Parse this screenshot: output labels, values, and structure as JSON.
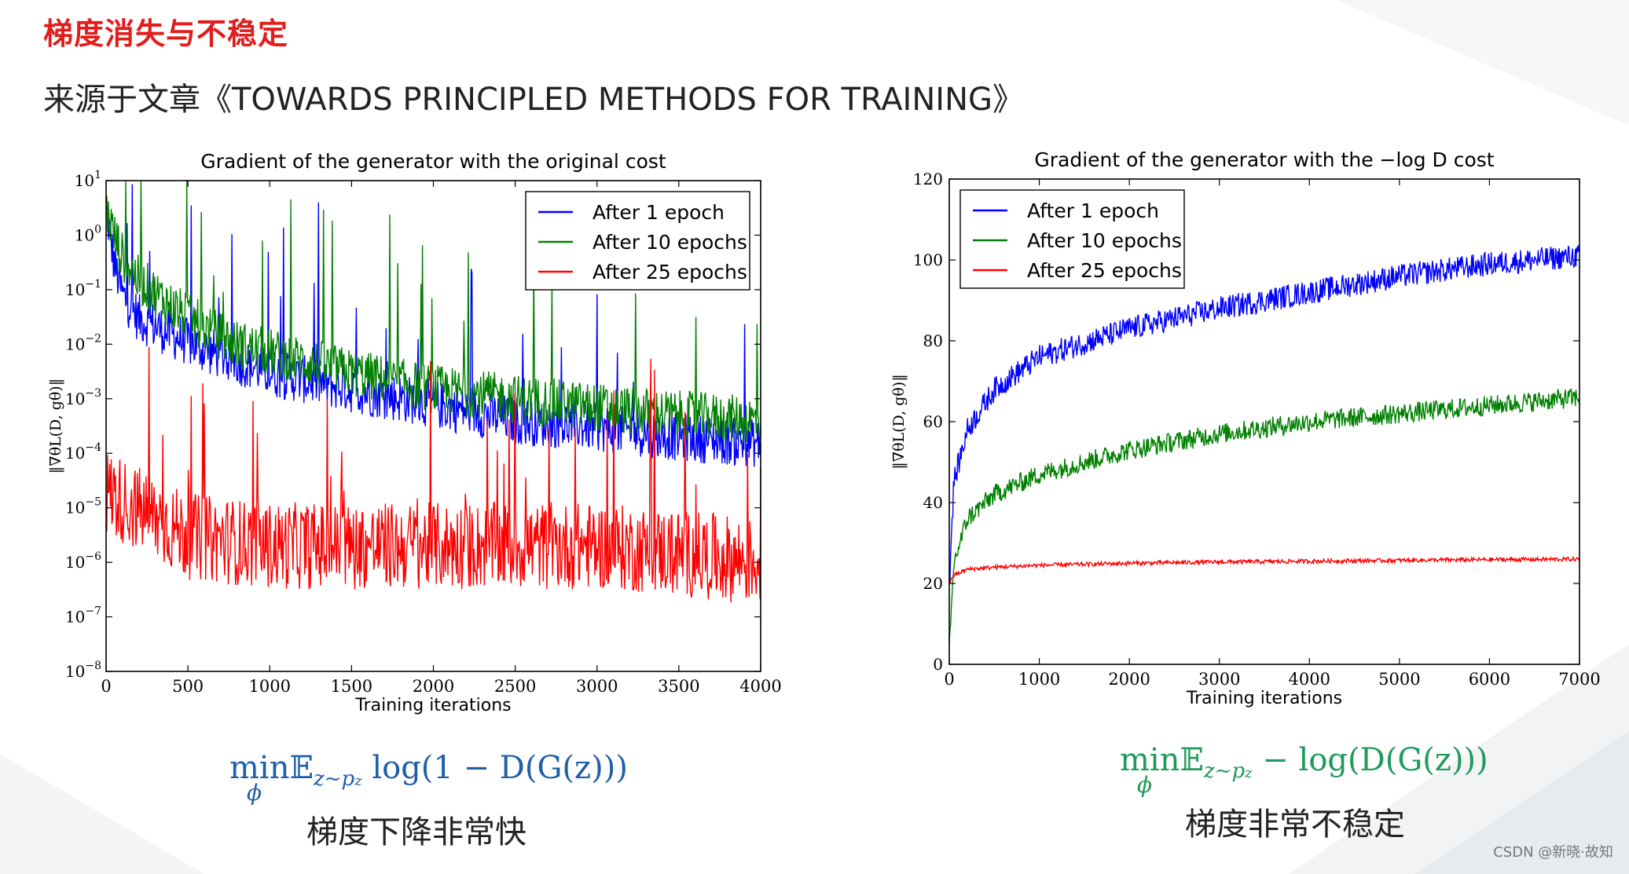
{
  "page": {
    "title": "梯度消失与不稳定",
    "subtitle": "来源于文章《TOWARDS PRINCIPLED METHODS FOR TRAINING》",
    "watermark": "CSDN @新晓·故知",
    "accent_color": "#e31c1c"
  },
  "chart_data": [
    {
      "type": "line",
      "title": "Gradient of the generator with the original cost",
      "xlabel": "Training iterations",
      "ylabel": "‖∇θL(D, gθ)‖",
      "xlim": [
        0,
        4000
      ],
      "ylim": [
        1e-08,
        10
      ],
      "yscale": "log",
      "x_ticks": [
        "0",
        "500",
        "1000",
        "1500",
        "2000",
        "2500",
        "3000",
        "3500",
        "4000"
      ],
      "y_tick_exponents": [
        "1",
        "0",
        "-1",
        "-2",
        "-3",
        "-4",
        "-5",
        "-6",
        "-7",
        "-8"
      ],
      "legend": "top-right",
      "grid": false,
      "series": [
        {
          "name": "After 1 epoch",
          "color": "#0000ff",
          "x": [
            0,
            50,
            100,
            200,
            400,
            600,
            800,
            1000,
            1500,
            2000,
            2500,
            3000,
            3500,
            4000
          ],
          "values": [
            3,
            0.3,
            0.08,
            0.03,
            0.015,
            0.008,
            0.005,
            0.003,
            0.0015,
            0.0008,
            0.0004,
            0.0003,
            0.0002,
            0.00015
          ]
        },
        {
          "name": "After 10 epochs",
          "color": "#008000",
          "x": [
            0,
            50,
            100,
            200,
            400,
            600,
            800,
            1000,
            1500,
            2000,
            2500,
            3000,
            3500,
            4000
          ],
          "values": [
            3,
            1,
            0.4,
            0.15,
            0.05,
            0.02,
            0.01,
            0.007,
            0.003,
            0.0015,
            0.001,
            0.0007,
            0.0005,
            0.0004
          ]
        },
        {
          "name": "After 25 epochs",
          "color": "#ff0000",
          "x": [
            0,
            500,
            1000,
            1500,
            2000,
            2500,
            3000,
            3500,
            4000
          ],
          "values": [
            2e-05,
            3e-06,
            2e-06,
            2e-06,
            2e-06,
            2e-06,
            2e-06,
            1.5e-06,
            1e-06
          ]
        }
      ]
    },
    {
      "type": "line",
      "title": "Gradient of the generator with the −log D cost",
      "xlabel": "Training iterations",
      "ylabel": "‖∇θL(D, gθ)‖",
      "xlim": [
        0,
        7000
      ],
      "ylim": [
        0,
        120
      ],
      "x_ticks": [
        "0",
        "1000",
        "2000",
        "3000",
        "4000",
        "5000",
        "6000",
        "7000"
      ],
      "y_ticks": [
        "0",
        "20",
        "40",
        "60",
        "80",
        "100",
        "120"
      ],
      "legend": "top-left",
      "grid": false,
      "series": [
        {
          "name": "After 1 epoch",
          "color": "#0000ff",
          "x": [
            0,
            50,
            200,
            500,
            1000,
            2000,
            3000,
            4000,
            5000,
            6000,
            7000
          ],
          "values": [
            20,
            45,
            58,
            68,
            76,
            83,
            88,
            92,
            96,
            99,
            101
          ]
        },
        {
          "name": "After 10 epochs",
          "color": "#008000",
          "x": [
            0,
            50,
            200,
            500,
            1000,
            2000,
            3000,
            4000,
            5000,
            6000,
            7000
          ],
          "values": [
            3,
            25,
            36,
            42,
            47,
            53,
            57,
            60,
            62,
            64,
            66
          ]
        },
        {
          "name": "After 25 epochs",
          "color": "#ff0000",
          "x": [
            0,
            50,
            200,
            500,
            1000,
            2000,
            3000,
            4000,
            5000,
            6000,
            7000
          ],
          "values": [
            20,
            22,
            23.5,
            24,
            24.5,
            25,
            25.3,
            25.5,
            25.7,
            25.9,
            26
          ]
        }
      ]
    }
  ],
  "formulas": {
    "left": {
      "op": "min",
      "under": "ϕ",
      "E": "𝔼",
      "sub": "z~p",
      "subsub": "z",
      "body": " log(1 − D(G(z)))"
    },
    "right": {
      "op": "min",
      "under": "ϕ",
      "E": "𝔼",
      "sub": "z~p",
      "subsub": "z",
      "body": " − log(D(G(z)))"
    }
  },
  "captions": {
    "left": "梯度下降非常快",
    "right": "梯度非常不稳定"
  }
}
